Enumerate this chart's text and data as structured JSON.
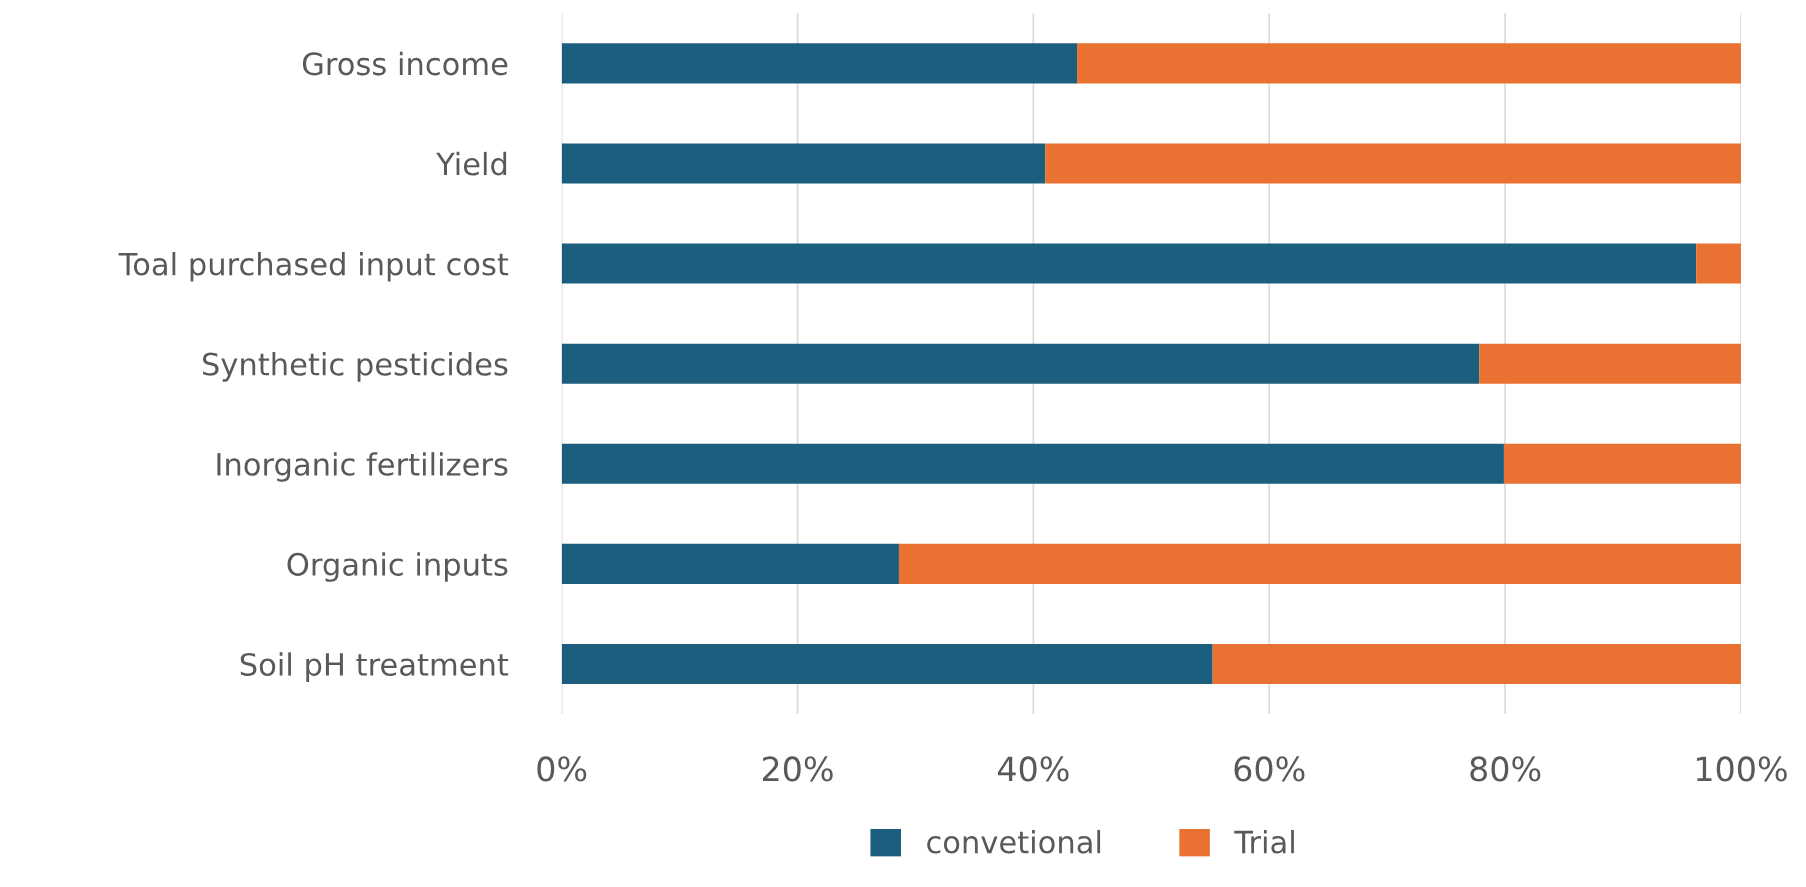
{
  "chart_data": {
    "type": "bar",
    "orientation": "horizontal",
    "stacked": true,
    "categories": [
      "Gross income",
      "Yield",
      "Toal purchased input cost",
      "Synthetic pesticides",
      "Inorganic fertilizers",
      "Organic inputs",
      "Soil pH treatment"
    ],
    "series": [
      {
        "name": "convetional",
        "color": "#1b5e7e",
        "values": [
          43.7,
          41.0,
          96.2,
          77.8,
          79.9,
          28.6,
          55.2
        ]
      },
      {
        "name": "Trial",
        "color": "#e97132",
        "values": [
          56.3,
          59.0,
          3.8,
          22.2,
          20.1,
          71.4,
          44.8
        ]
      }
    ],
    "xlim": [
      0,
      100
    ],
    "xticks": [
      {
        "value": 0,
        "label": "0%"
      },
      {
        "value": 20,
        "label": "20%"
      },
      {
        "value": 40,
        "label": "40%"
      },
      {
        "value": 60,
        "label": "60%"
      },
      {
        "value": 80,
        "label": "80%"
      },
      {
        "value": 100,
        "label": "100%"
      }
    ],
    "grid": "x",
    "legend": "bottom"
  }
}
